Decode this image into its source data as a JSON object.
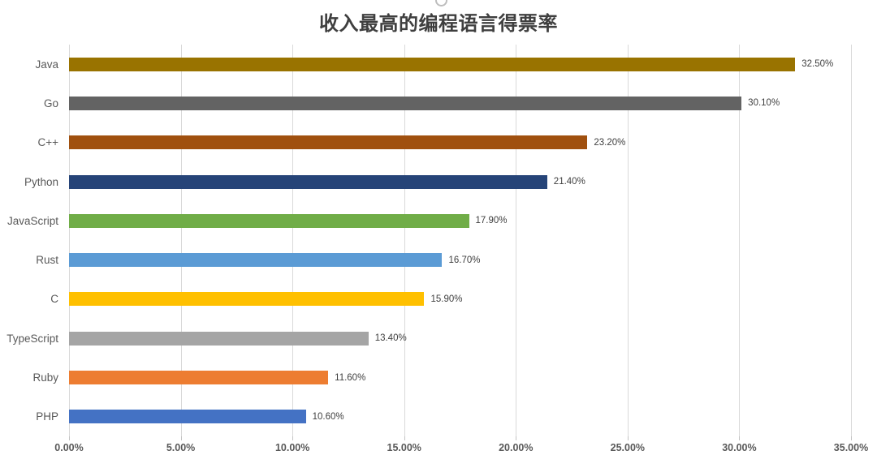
{
  "title": "收入最高的编程语言得票率",
  "chart_data": {
    "type": "bar",
    "orientation": "horizontal",
    "title": "收入最高的编程语言得票率",
    "categories": [
      "Java",
      "Go",
      "C++",
      "Python",
      "JavaScript",
      "Rust",
      "C",
      "TypeScript",
      "Ruby",
      "PHP"
    ],
    "values": [
      32.5,
      30.1,
      23.2,
      21.4,
      17.9,
      16.7,
      15.9,
      13.4,
      11.6,
      10.6
    ],
    "value_labels": [
      "32.50%",
      "30.10%",
      "23.20%",
      "21.40%",
      "17.90%",
      "16.70%",
      "15.90%",
      "13.40%",
      "11.60%",
      "10.60%"
    ],
    "bar_colors": [
      "#997300",
      "#636363",
      "#A0500F",
      "#264478",
      "#70AD47",
      "#5B9BD5",
      "#FFC000",
      "#A5A5A5",
      "#ED7D31",
      "#4472C4"
    ],
    "xlim": [
      0,
      35
    ],
    "x_ticks": [
      0,
      5,
      10,
      15,
      20,
      25,
      30,
      35
    ],
    "x_tick_labels": [
      "0.00%",
      "5.00%",
      "10.00%",
      "15.00%",
      "20.00%",
      "25.00%",
      "30.00%",
      "35.00%"
    ],
    "xlabel": "",
    "ylabel": "",
    "grid": "vertical",
    "legend": "none"
  },
  "colors": {
    "background": "#FFFFFF",
    "gridline": "#D9D9D9",
    "tick": "#C3C3C3",
    "title_text": "#3F3F3F",
    "category_text": "#595959",
    "value_text": "#404040",
    "axis_text": "#595959"
  }
}
